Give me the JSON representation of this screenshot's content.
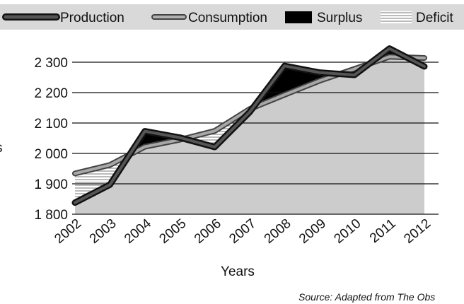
{
  "chart_data": {
    "type": "line",
    "categories": [
      "2002",
      "2003",
      "2004",
      "2005",
      "2006",
      "2007",
      "2008",
      "2009",
      "2010",
      "2011",
      "2012"
    ],
    "series": [
      {
        "name": "Production",
        "values": [
          1838,
          1897,
          2073,
          2052,
          2021,
          2136,
          2288,
          2266,
          2258,
          2345,
          2286
        ]
      },
      {
        "name": "Consumption",
        "values": [
          1934,
          1962,
          2022,
          2045,
          2074,
          2146,
          2193,
          2239,
          2278,
          2318,
          2314
        ]
      }
    ],
    "legend": [
      "Production",
      "Consumption",
      "Surplus",
      "Deficit"
    ],
    "legend_position": "top",
    "xlabel": "Years",
    "ylabel": "",
    "ylim": [
      1800,
      2350
    ],
    "yticks": [
      1800,
      1900,
      2000,
      2100,
      2200,
      2300
    ],
    "ytick_labels": [
      "1 800",
      "1 900",
      "2 000",
      "2 100",
      "2 200",
      "2 300"
    ],
    "grid": "horizontal",
    "source": "Source: Adapted from The Obs",
    "colors": {
      "production_line": "#333333",
      "consumption_line": "#9a9a9a",
      "surplus_fill": "#000000",
      "deficit_hatch": "#777777",
      "area_fill": "#cccccc",
      "legend_bar": "#d9d9d9"
    }
  }
}
